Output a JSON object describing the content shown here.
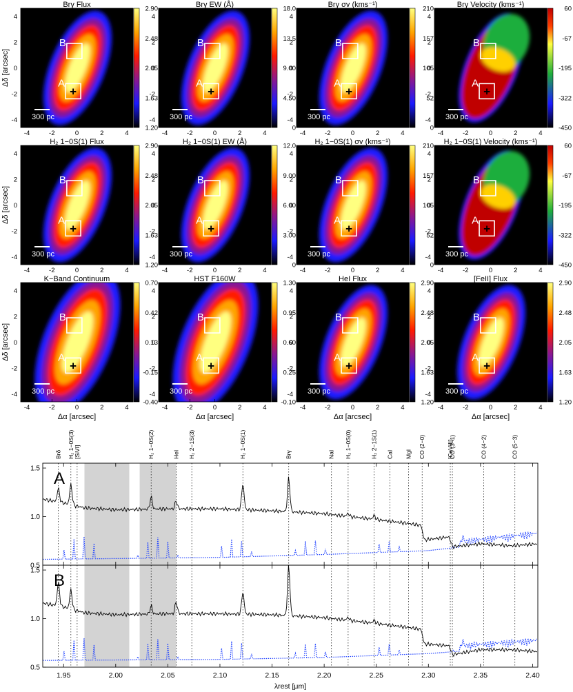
{
  "colors": {
    "map_black": "#000000",
    "map_blue": "#1a1aff",
    "map_red": "#ff1a00",
    "map_orange": "#ffa500",
    "map_yellow": "#ffff80",
    "velocity_green": "#1fae3c",
    "model_dotted": "#2244ff",
    "gap_gray": "#d3d3d3"
  },
  "maps": {
    "panels": [
      {
        "title": "Brγ Flux",
        "cbar_ticks": [
          "2.90",
          "2.48",
          "2.05",
          "1.63",
          "1.20"
        ],
        "cmap": "heat"
      },
      {
        "title": "Brγ EW (Å)",
        "cbar_ticks": [
          "18.0",
          "13.5",
          "9.00",
          "4.50",
          "0"
        ],
        "cmap": "heat"
      },
      {
        "title": "Brγ σv (kms⁻¹)",
        "cbar_ticks": [
          "210",
          "157",
          "105",
          "52",
          "0"
        ],
        "cmap": "heat"
      },
      {
        "title": "Brγ Velocity (kms⁻¹)",
        "cbar_ticks": [
          "60",
          "-67",
          "-195",
          "-322",
          "-450"
        ],
        "cmap": "velocity"
      },
      {
        "title": "H₂ 1−0S(1) Flux",
        "cbar_ticks": [
          "2.90",
          "2.48",
          "2.05",
          "1.63",
          "1.20"
        ],
        "cmap": "heat"
      },
      {
        "title": "H₂ 1−0S(1) EW (Å)",
        "cbar_ticks": [
          "12.0",
          "9.00",
          "6.00",
          "3.00",
          "0"
        ],
        "cmap": "heat"
      },
      {
        "title": "H₂ 1−0S(1) σv (kms⁻¹)",
        "cbar_ticks": [
          "210",
          "157",
          "105",
          "52",
          "0"
        ],
        "cmap": "heat"
      },
      {
        "title": "H₂ 1−0S(1) Velocity (kms⁻¹)",
        "cbar_ticks": [
          "60",
          "-67",
          "-195",
          "-322",
          "-450"
        ],
        "cmap": "velocity"
      },
      {
        "title": "K−Band Continuum",
        "cbar_ticks": [
          "0.70",
          "0.42",
          "0.13",
          "-0.15",
          "-0.40"
        ],
        "cmap": "heat"
      },
      {
        "title": "HST F160W",
        "cbar_ticks": [
          "1.30",
          "0.95",
          "0.60",
          "0.25",
          "-0.10"
        ],
        "cmap": "heat"
      },
      {
        "title": "HeI Flux",
        "cbar_ticks": [
          "2.90",
          "2.48",
          "2.05",
          "1.63",
          "1.20"
        ],
        "cmap": "heat"
      },
      {
        "title": "[FeII] Flux",
        "cbar_ticks": [
          "2.90",
          "2.48",
          "2.05",
          "1.63",
          "1.20"
        ],
        "cmap": "heat"
      }
    ],
    "x_ticks": [
      -4,
      -2,
      0,
      2,
      4
    ],
    "y_ticks": [
      4,
      2,
      0,
      -2,
      -4
    ],
    "xlabel": "Δα [arcsec]",
    "ylabel": "Δδ [arcsec]",
    "scalebar_label": "300 pc",
    "box_labels": [
      "A",
      "B"
    ],
    "box_A_center": [
      -0.3,
      -1.8
    ],
    "box_B_center": [
      -0.2,
      1.3
    ],
    "nucleus_marker": "+",
    "xlim": [
      -4.5,
      4.5
    ],
    "ylim": [
      -4.6,
      4.6
    ]
  },
  "chart_data": {
    "type": "line",
    "xlabel": "λrest [μm]",
    "xlim": [
      1.93,
      2.405
    ],
    "x_ticks": [
      "1.95",
      "2.00",
      "2.05",
      "2.10",
      "2.15",
      "2.20",
      "2.25",
      "2.30",
      "2.35",
      "2.40"
    ],
    "shaded_regions": [
      [
        1.97,
        2.013
      ],
      [
        2.023,
        2.058
      ]
    ],
    "line_ids": [
      {
        "label": "Brδ",
        "x": 1.945
      },
      {
        "label": "H₂ 1−0S(3)",
        "x": 1.957
      },
      {
        "label": "[SiVI]",
        "x": 1.963
      },
      {
        "label": "H₂ 1−0S(2)",
        "x": 2.034
      },
      {
        "label": "HeI",
        "x": 2.058
      },
      {
        "label": "H₂ 2−1S(3)",
        "x": 2.073
      },
      {
        "label": "H₂ 1−0S(1)",
        "x": 2.122
      },
      {
        "label": "Brγ",
        "x": 2.166
      },
      {
        "label": "NaI",
        "x": 2.207
      },
      {
        "label": "H₂ 1−0S(0)",
        "x": 2.223
      },
      {
        "label": "H₂ 2−1S(1)",
        "x": 2.248
      },
      {
        "label": "CaI",
        "x": 2.263
      },
      {
        "label": "MgI",
        "x": 2.281
      },
      {
        "label": "CO (2−0)",
        "x": 2.294
      },
      {
        "label": "[CaVIII]",
        "x": 2.321
      },
      {
        "label": "CO (3−1)",
        "x": 2.323
      },
      {
        "label": "CO (4−2)",
        "x": 2.353
      },
      {
        "label": "CO (5−3)",
        "x": 2.383
      }
    ],
    "panels": [
      {
        "label": "A",
        "ylim": [
          0.5,
          1.55
        ],
        "y_ticks": [
          "0.5",
          "1.0",
          "1.5"
        ],
        "continuum_knots": [
          [
            1.93,
            1.18
          ],
          [
            1.95,
            1.14
          ],
          [
            1.97,
            1.09
          ],
          [
            2.0,
            1.07
          ],
          [
            2.05,
            1.08
          ],
          [
            2.1,
            1.08
          ],
          [
            2.15,
            1.06
          ],
          [
            2.2,
            1.03
          ],
          [
            2.25,
            0.97
          ],
          [
            2.28,
            0.93
          ],
          [
            2.293,
            0.91
          ],
          [
            2.296,
            0.76
          ],
          [
            2.32,
            0.79
          ],
          [
            2.323,
            0.69
          ],
          [
            2.35,
            0.72
          ],
          [
            2.38,
            0.7
          ],
          [
            2.405,
            0.72
          ]
        ],
        "emission_lines": [
          [
            1.945,
            0.14
          ],
          [
            1.957,
            0.21
          ],
          [
            2.034,
            0.12
          ],
          [
            2.058,
            0.08
          ],
          [
            2.122,
            0.27
          ],
          [
            2.166,
            0.35
          ],
          [
            2.223,
            0.03
          ],
          [
            2.248,
            0.04
          ]
        ],
        "model_knots": [
          [
            1.93,
            0.56
          ],
          [
            2.1,
            0.58
          ],
          [
            2.2,
            0.61
          ],
          [
            2.3,
            0.65
          ],
          [
            2.4,
            0.77
          ]
        ]
      },
      {
        "label": "B",
        "ylim": [
          0.5,
          1.55
        ],
        "y_ticks": [
          "0.5",
          "1.0",
          "1.5"
        ],
        "continuum_knots": [
          [
            1.93,
            1.16
          ],
          [
            1.95,
            1.12
          ],
          [
            1.97,
            1.06
          ],
          [
            2.0,
            1.04
          ],
          [
            2.05,
            1.05
          ],
          [
            2.1,
            1.05
          ],
          [
            2.15,
            1.04
          ],
          [
            2.2,
            1.01
          ],
          [
            2.25,
            0.95
          ],
          [
            2.28,
            0.91
          ],
          [
            2.293,
            0.89
          ],
          [
            2.296,
            0.74
          ],
          [
            2.32,
            0.72
          ],
          [
            2.323,
            0.63
          ],
          [
            2.35,
            0.68
          ],
          [
            2.38,
            0.68
          ],
          [
            2.405,
            0.66
          ]
        ],
        "emission_lines": [
          [
            1.945,
            0.24
          ],
          [
            1.957,
            0.2
          ],
          [
            2.034,
            0.08
          ],
          [
            2.058,
            0.12
          ],
          [
            2.122,
            0.23
          ],
          [
            2.166,
            0.52
          ],
          [
            2.223,
            0.03
          ],
          [
            2.248,
            0.03
          ]
        ],
        "model_knots": [
          [
            1.93,
            0.57
          ],
          [
            2.1,
            0.58
          ],
          [
            2.2,
            0.6
          ],
          [
            2.3,
            0.64
          ],
          [
            2.4,
            0.72
          ]
        ]
      }
    ]
  }
}
